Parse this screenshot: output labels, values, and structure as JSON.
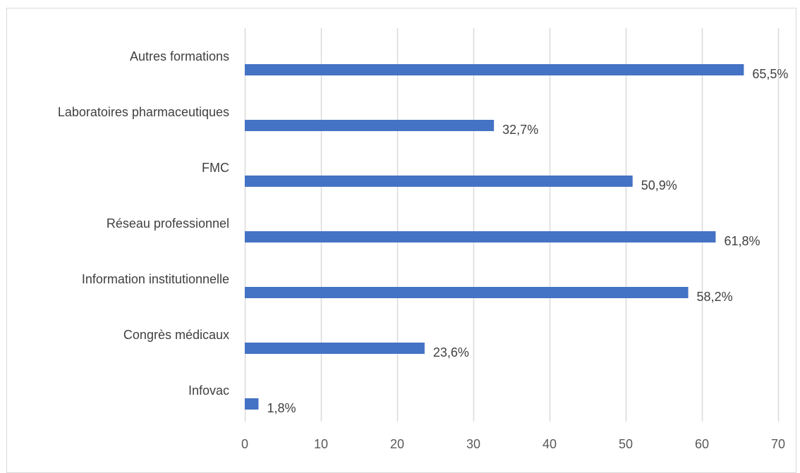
{
  "chart_data": {
    "type": "bar",
    "orientation": "horizontal",
    "title": "",
    "xlabel": "",
    "ylabel": "",
    "categories": [
      "Autres formations",
      "Laboratoires pharmaceutiques",
      "FMC",
      "Réseau professionnel",
      "Information institutionnelle",
      "Congrès médicaux",
      "Infovac"
    ],
    "values": [
      65.5,
      32.7,
      50.9,
      61.8,
      58.2,
      23.6,
      1.8
    ],
    "data_labels": [
      "65,5%",
      "32,7%",
      "50,9%",
      "61,8%",
      "58,2%",
      "23,6%",
      "1,8%"
    ],
    "xlim": [
      0,
      70
    ],
    "x_ticks": [
      0,
      10,
      20,
      30,
      40,
      50,
      60,
      70
    ],
    "x_tick_labels": [
      "0",
      "10",
      "20",
      "30",
      "40",
      "50",
      "60",
      "70"
    ],
    "grid": "vertical",
    "legend": "none",
    "colors": {
      "bar": "#4472c4",
      "grid": "#d9d9d9",
      "text": "#404040"
    }
  }
}
